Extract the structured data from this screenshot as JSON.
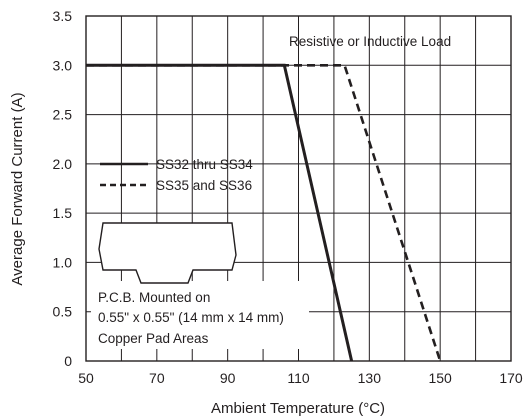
{
  "chart_data": {
    "type": "line",
    "xlabel": "Ambient Temperature (°C)",
    "ylabel": "Average Forward Current (A)",
    "xlim": [
      50,
      170
    ],
    "ylim": [
      0,
      3.5
    ],
    "x_ticks": [
      "50",
      "70",
      "90",
      "110",
      "130",
      "150",
      "170"
    ],
    "y_ticks": [
      "0",
      "0.5",
      "1.0",
      "1.5",
      "2.0",
      "2.5",
      "3.0",
      "3.5"
    ],
    "grid": true,
    "annotation": "Resistive or Inductive Load",
    "note_lines": [
      "P.C.B. Mounted on",
      "0.55\" x 0.55\" (14 mm x 14 mm)",
      "Copper Pad Areas"
    ],
    "legend_position": "middle-left",
    "series": [
      {
        "name": "SS32 thru SS34",
        "style": "solid",
        "color": "#231f20",
        "x": [
          50,
          106,
          125
        ],
        "y": [
          3.0,
          3.0,
          0
        ]
      },
      {
        "name": "SS35 and SS36",
        "style": "dashed",
        "color": "#231f20",
        "x": [
          50,
          123,
          150
        ],
        "y": [
          3.0,
          3.0,
          0
        ]
      }
    ]
  }
}
